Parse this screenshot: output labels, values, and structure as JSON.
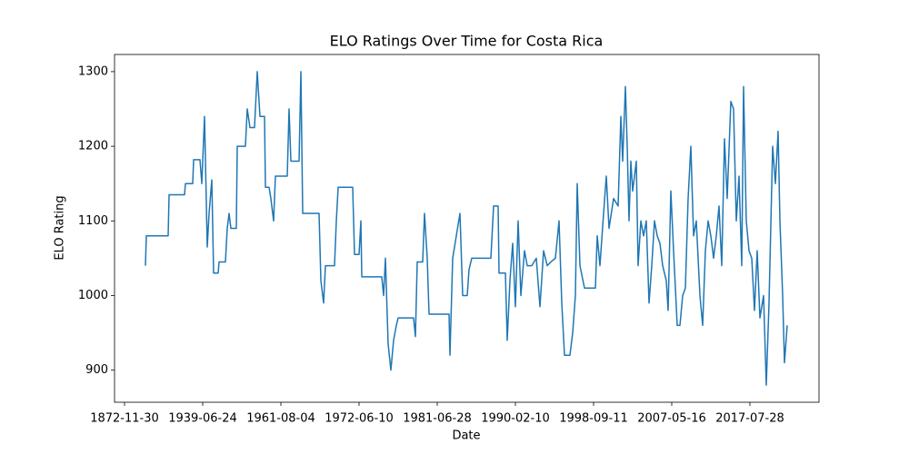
{
  "chart_data": {
    "type": "line",
    "title": "ELO Ratings Over Time for Costa Rica",
    "xlabel": "Date",
    "ylabel": "ELO Rating",
    "color": "#1f77b4",
    "grid": false,
    "x": [
      23,
      24,
      48,
      49,
      66,
      67,
      75,
      76,
      83,
      85,
      88,
      91,
      93,
      96,
      98,
      103,
      104,
      111,
      113,
      115,
      117,
      123,
      124,
      133,
      135,
      138,
      143,
      146,
      149,
      154,
      155,
      159,
      161,
      164,
      166,
      168,
      179,
      181,
      183,
      192,
      194,
      196,
      214,
      216,
      219,
      221,
      231,
      233,
      235,
      251,
      253,
      258,
      260,
      261,
      283,
      285,
      287,
      290,
      293,
      296,
      299,
      301,
      318,
      320,
      322,
      328,
      330,
      333,
      335,
      357,
      358,
      361,
      365,
      369,
      372,
      377,
      379,
      382,
      403,
      406,
      411,
      412,
      419,
      421,
      424,
      427,
      430,
      433,
      436,
      440,
      443,
      448,
      453,
      457,
      461,
      465,
      469,
      474,
      478,
      481,
      484,
      490,
      493,
      496,
      498,
      501,
      506,
      518,
      520,
      523,
      527,
      530,
      533,
      538,
      543,
      546,
      548,
      551,
      553,
      555,
      557,
      559,
      563,
      565,
      568,
      571,
      574,
      577,
      580,
      583,
      586,
      589,
      592,
      596,
      598,
      601,
      604,
      608,
      611,
      614,
      617,
      620,
      623,
      626,
      629,
      633,
      636,
      639,
      642,
      645,
      648,
      651,
      654,
      657,
      660,
      663,
      667,
      670,
      673,
      676,
      679,
      681,
      684,
      687,
      690,
      693,
      696,
      699,
      703,
      706,
      709,
      713,
      716,
      719,
      721,
      724,
      726,
      729
    ],
    "values": [
      1040,
      1080,
      1080,
      1135,
      1135,
      1150,
      1150,
      1182,
      1182,
      1150,
      1240,
      1065,
      1110,
      1155,
      1030,
      1030,
      1045,
      1045,
      1090,
      1110,
      1090,
      1090,
      1200,
      1200,
      1250,
      1225,
      1225,
      1300,
      1240,
      1240,
      1145,
      1145,
      1130,
      1100,
      1160,
      1160,
      1160,
      1250,
      1180,
      1180,
      1300,
      1110,
      1110,
      1020,
      990,
      1040,
      1040,
      1100,
      1145,
      1145,
      1055,
      1055,
      1100,
      1025,
      1025,
      1000,
      1050,
      935,
      900,
      940,
      960,
      970,
      970,
      945,
      1045,
      1045,
      1110,
      1050,
      975,
      975,
      920,
      1050,
      1080,
      1110,
      1000,
      1000,
      1035,
      1050,
      1050,
      1120,
      1120,
      1030,
      1030,
      940,
      1020,
      1070,
      985,
      1100,
      1000,
      1060,
      1040,
      1040,
      1050,
      985,
      1060,
      1040,
      1045,
      1050,
      1100,
      990,
      920,
      920,
      950,
      1000,
      1150,
      1040,
      1010,
      1010,
      1080,
      1040,
      1110,
      1160,
      1090,
      1130,
      1120,
      1240,
      1180,
      1280,
      1200,
      1100,
      1180,
      1140,
      1180,
      1040,
      1100,
      1080,
      1100,
      990,
      1040,
      1100,
      1080,
      1070,
      1040,
      1020,
      980,
      1140,
      1060,
      960,
      960,
      1000,
      1010,
      1130,
      1200,
      1080,
      1100,
      1000,
      960,
      1060,
      1100,
      1080,
      1050,
      1080,
      1120,
      1040,
      1210,
      1130,
      1260,
      1250,
      1100,
      1160,
      1040,
      1280,
      1100,
      1060,
      1050,
      980,
      1060,
      970,
      1000,
      880,
      990,
      1200,
      1150,
      1220,
      1100,
      1000,
      910,
      960
    ],
    "xlim": [
      -11,
      764
    ],
    "xticks": [
      {
        "value": 0,
        "label": "1872-11-30"
      },
      {
        "value": 86,
        "label": "1939-06-24"
      },
      {
        "value": 172,
        "label": "1961-08-04"
      },
      {
        "value": 258,
        "label": "1972-06-10"
      },
      {
        "value": 344,
        "label": "1981-06-28"
      },
      {
        "value": 430,
        "label": "1990-02-10"
      },
      {
        "value": 516,
        "label": "1998-09-11"
      },
      {
        "value": 602,
        "label": "2007-05-16"
      },
      {
        "value": 688,
        "label": "2017-07-28"
      }
    ],
    "ylim": [
      857,
      1323
    ],
    "yticks": [
      900,
      1000,
      1100,
      1200,
      1300
    ]
  }
}
